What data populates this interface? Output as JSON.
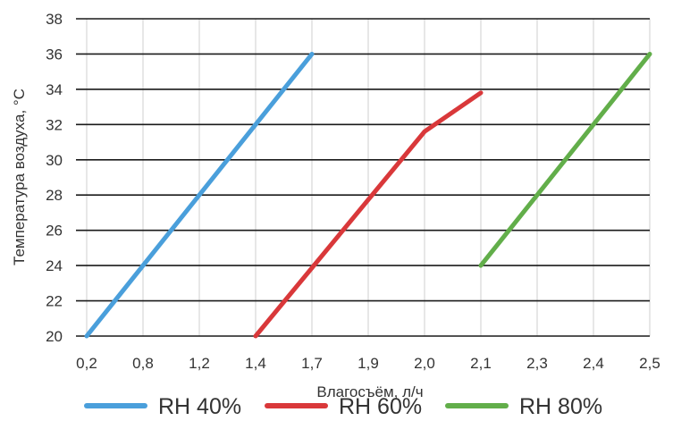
{
  "chart_data": {
    "type": "line",
    "xlabel": "Влагосъём, л/ч",
    "ylabel": "Температура воздуха, °С",
    "x_categories": [
      "0,2",
      "0,8",
      "1,2",
      "1,4",
      "1,7",
      "1,9",
      "2,0",
      "2,1",
      "2,3",
      "2,4",
      "2,5"
    ],
    "y_ticks": [
      "20",
      "22",
      "24",
      "26",
      "28",
      "30",
      "32",
      "34",
      "36",
      "38"
    ],
    "ylim": [
      20,
      38
    ],
    "grid": "horizontal and vertical",
    "legend_position": "bottom",
    "series": [
      {
        "name": "RH 40%",
        "color": "#4A9FDB",
        "points": [
          {
            "x_index": 0,
            "y": 20
          },
          {
            "x_index": 4,
            "y": 36
          }
        ]
      },
      {
        "name": "RH 60%",
        "color": "#D9383A",
        "points": [
          {
            "x_index": 3,
            "y": 20
          },
          {
            "x_index": 6,
            "y": 31.6
          },
          {
            "x_index": 7,
            "y": 33.8
          }
        ]
      },
      {
        "name": "RH 80%",
        "color": "#62AE4A",
        "points": [
          {
            "x_index": 7,
            "y": 24
          },
          {
            "x_index": 10,
            "y": 36
          }
        ]
      }
    ]
  }
}
